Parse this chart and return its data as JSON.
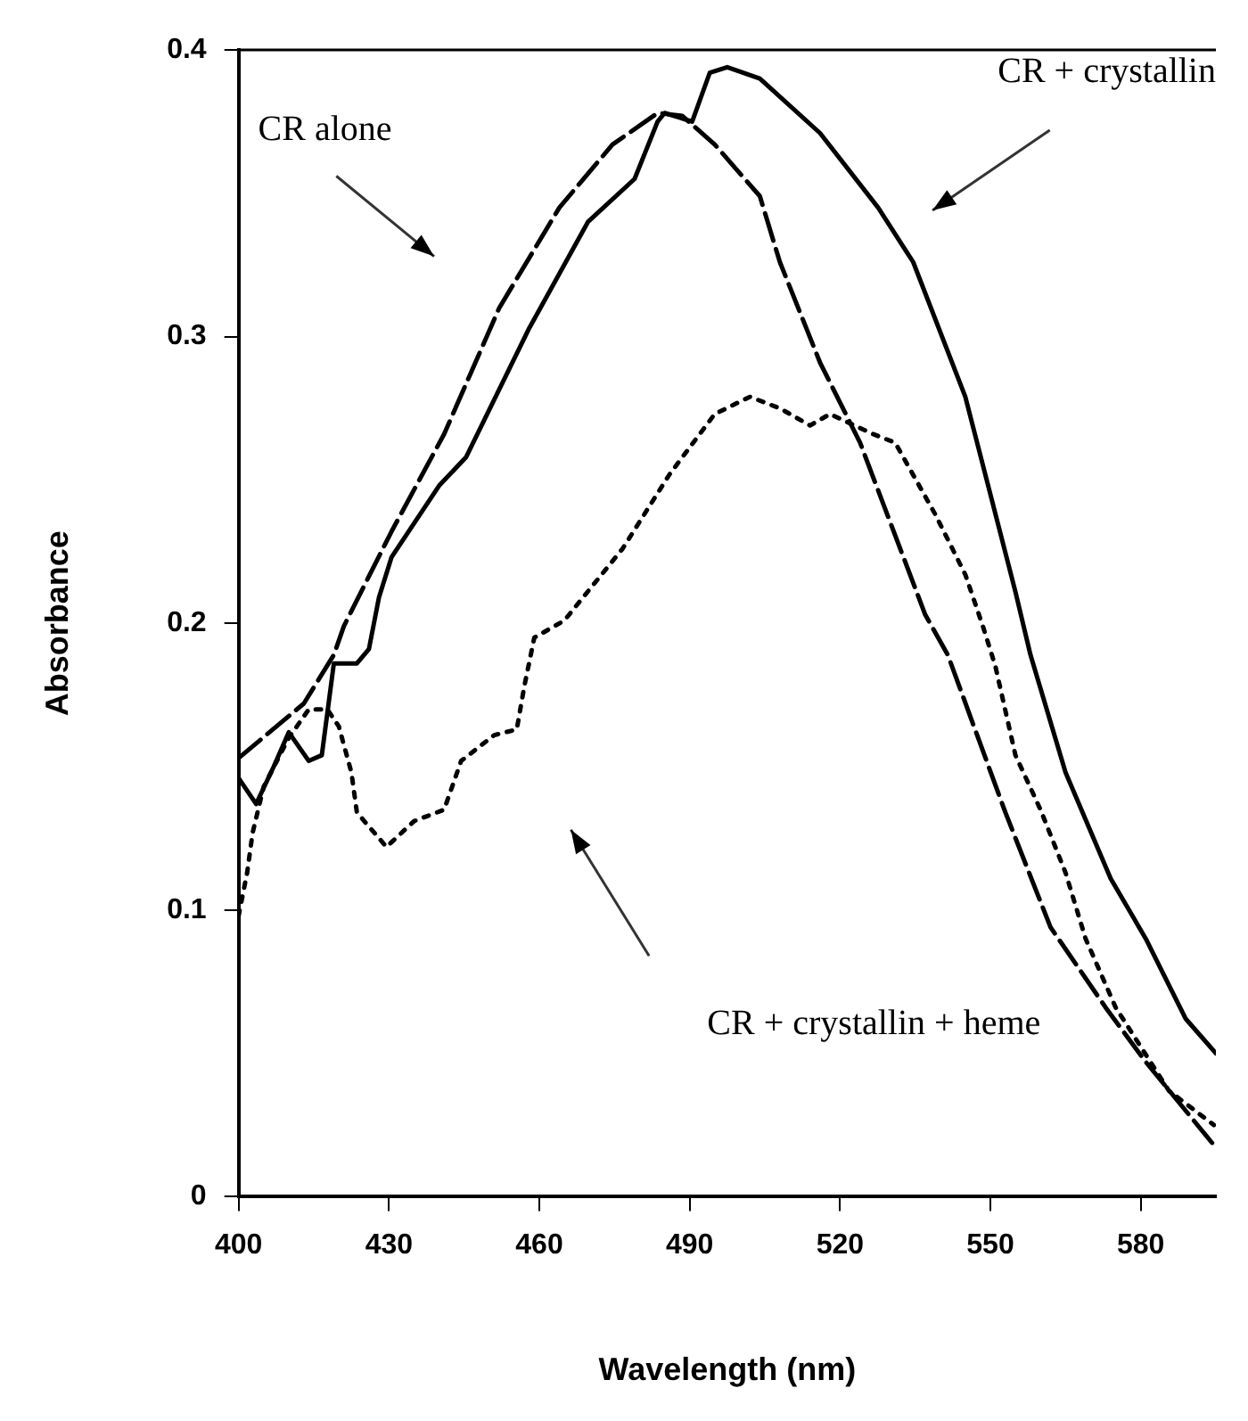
{
  "chart_data": {
    "type": "line",
    "xlabel": "Wavelength (nm)",
    "ylabel": "Absorbance",
    "xlim": [
      400,
      595
    ],
    "ylim": [
      0,
      0.4
    ],
    "xticks": [
      400,
      430,
      460,
      490,
      520,
      550,
      580
    ],
    "yticks": [
      0,
      0.1,
      0.2,
      0.3,
      0.4
    ],
    "grid": false,
    "legend": false,
    "marker": "none",
    "annotations": [
      "CR alone",
      "CR + crystallin",
      "CR + crystallin + heme"
    ],
    "series": [
      {
        "color": "#000000",
        "line_style": "dashed",
        "x": [
          400,
          413,
          419,
          421,
          430.5,
          441,
          452,
          464,
          474.6,
          483.6,
          488.5,
          495,
          504,
          508,
          516,
          524,
          537,
          541.5,
          553,
          562,
          573,
          581,
          594.6
        ],
        "values": [
          0.153,
          0.172,
          0.189,
          0.199,
          0.232,
          0.266,
          0.31,
          0.345,
          0.367,
          0.378,
          0.377,
          0.367,
          0.349,
          0.326,
          0.291,
          0.263,
          0.203,
          0.189,
          0.134,
          0.094,
          0.066,
          0.047,
          0.018
        ]
      },
      {
        "color": "#000000",
        "line_style": "solid",
        "x": [
          400,
          403.5,
          407,
          410,
          414,
          416.6,
          419,
          423.6,
          426,
          428,
          430.5,
          440,
          445.4,
          458,
          469.7,
          479,
          483.6,
          485,
          490.5,
          494,
          497.5,
          504,
          516,
          527.6,
          534.6,
          545,
          555,
          558,
          565,
          574,
          581,
          589,
          595
        ],
        "values": [
          0.146,
          0.137,
          0.15,
          0.162,
          0.152,
          0.154,
          0.186,
          0.186,
          0.191,
          0.209,
          0.223,
          0.248,
          0.258,
          0.303,
          0.34,
          0.355,
          0.375,
          0.378,
          0.375,
          0.392,
          0.394,
          0.39,
          0.371,
          0.345,
          0.326,
          0.279,
          0.211,
          0.189,
          0.148,
          0.111,
          0.09,
          0.062,
          0.05
        ]
      },
      {
        "color": "#000000",
        "line_style": "dotted",
        "x": [
          400,
          401.7,
          402.8,
          405,
          410,
          414,
          417.7,
          420,
          422.5,
          423.6,
          429.5,
          435,
          441,
          444.4,
          451,
          455.5,
          457,
          459,
          465,
          476.6,
          486,
          495,
          502,
          508,
          514,
          518,
          526.6,
          531,
          539,
          545,
          548.5,
          551,
          555,
          560,
          565,
          569,
          575,
          585.6,
          594.6
        ],
        "values": [
          0.098,
          0.113,
          0.127,
          0.143,
          0.16,
          0.17,
          0.17,
          0.164,
          0.148,
          0.134,
          0.122,
          0.131,
          0.135,
          0.152,
          0.161,
          0.163,
          0.178,
          0.195,
          0.201,
          0.226,
          0.252,
          0.273,
          0.279,
          0.275,
          0.269,
          0.273,
          0.266,
          0.263,
          0.238,
          0.217,
          0.199,
          0.185,
          0.154,
          0.135,
          0.113,
          0.09,
          0.066,
          0.037,
          0.025
        ]
      }
    ]
  }
}
